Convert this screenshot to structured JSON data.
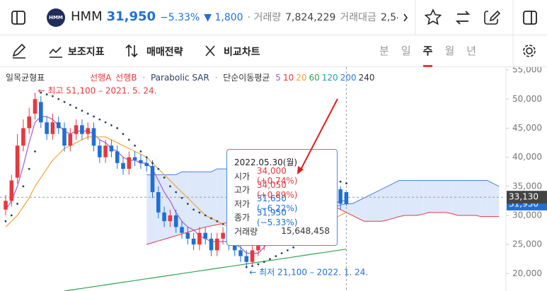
{
  "header": {
    "logo": "HMM",
    "name": "HMM",
    "price": "31,950",
    "change_pct": "−5.33%",
    "change": "▼ 1,800",
    "volume_label": "· 거래량",
    "volume": "7,824,229",
    "amount_label": "거래대금",
    "amount": "2,54"
  },
  "toolbar": {
    "indicators": "보조지표",
    "strategy": "매매전략",
    "compare": "비교차트",
    "periods": [
      "분",
      "일",
      "주",
      "월",
      "년"
    ],
    "active_period": "주"
  },
  "chart_data": {
    "type": "candlestick",
    "legend": {
      "ichimoku": "일목균형표",
      "span_a": "선행A",
      "span_b": "선행B",
      "sar": "Parabolic SAR",
      "ma": "단순이동평균"
    },
    "ylim": [
      17000,
      55500
    ],
    "yticks": [
      {
        "value": 20000,
        "label": "20,000"
      },
      {
        "value": 25000,
        "label": "25,000"
      },
      {
        "value": 30000,
        "label": "30,000"
      },
      {
        "value": 35000,
        "label": "35,000"
      },
      {
        "value": 40000,
        "label": "40,000"
      },
      {
        "value": 45000,
        "label": "45,000"
      },
      {
        "value": 50000,
        "label": "50,000"
      },
      {
        "value": 55000,
        "label": "55,000"
      }
    ],
    "up_color": "#e8383d",
    "down_color": "#1f6fd6",
    "open": [
      31000,
      32500,
      36500,
      42000,
      45000,
      47500,
      49500,
      46000,
      44000,
      46000,
      45000,
      42000,
      44000,
      45500,
      44000,
      45000,
      42000,
      40000,
      42000,
      41000,
      39000,
      38000,
      40000,
      39500,
      39000,
      38500,
      34000,
      30500,
      29000,
      30000,
      28000,
      27000,
      26000,
      25000,
      27000,
      26000,
      24000,
      26000,
      27000,
      25000,
      24000,
      23000,
      22000,
      24000,
      25000,
      27000,
      28000,
      27000,
      29000,
      30000,
      31000,
      32000,
      33000,
      31000,
      30000,
      32000,
      33000,
      34500,
      34000
    ],
    "high": [
      33500,
      37000,
      44000,
      46500,
      48500,
      51100,
      50500,
      47000,
      47500,
      47000,
      46000,
      45000,
      46500,
      46500,
      46000,
      46000,
      43000,
      43000,
      43000,
      42000,
      40000,
      41000,
      41000,
      40500,
      40000,
      39500,
      35000,
      31500,
      31000,
      31000,
      29000,
      28000,
      27000,
      28000,
      28000,
      27000,
      27000,
      28000,
      28000,
      26000,
      25000,
      24000,
      25000,
      26000,
      28000,
      29000,
      29000,
      30000,
      31000,
      32000,
      33000,
      34000,
      34000,
      32000,
      33000,
      34000,
      35000,
      35000,
      34050
    ],
    "low": [
      30000,
      31500,
      35500,
      41000,
      44000,
      46500,
      45000,
      43000,
      43000,
      44000,
      41000,
      41000,
      43000,
      43000,
      43000,
      41000,
      39000,
      39000,
      40000,
      38000,
      37000,
      37000,
      38500,
      38000,
      37500,
      33000,
      29500,
      28000,
      28000,
      27000,
      26000,
      25000,
      24000,
      24000,
      25000,
      23000,
      23000,
      25000,
      24000,
      23000,
      22000,
      21100,
      21500,
      23000,
      24000,
      26000,
      26000,
      26000,
      28000,
      29000,
      30000,
      31000,
      30000,
      29000,
      29000,
      31000,
      32000,
      31000,
      31650
    ],
    "close": [
      32500,
      36000,
      42000,
      45000,
      47000,
      50000,
      46000,
      44000,
      46000,
      45000,
      42000,
      44000,
      45500,
      44000,
      45000,
      42000,
      40000,
      42000,
      41000,
      39000,
      38000,
      40000,
      39500,
      39000,
      38500,
      34000,
      30500,
      29000,
      30000,
      28000,
      27000,
      26000,
      25000,
      27000,
      26000,
      24000,
      26000,
      27000,
      25000,
      24000,
      23000,
      22000,
      24000,
      25000,
      27000,
      28000,
      27000,
      29000,
      30000,
      31000,
      32000,
      33000,
      31000,
      30000,
      32000,
      33000,
      34000,
      32000,
      31950
    ],
    "moving_averages": [
      {
        "period": "5",
        "color": "#a55bd6",
        "values": [
          31000,
          32500,
          35000,
          38500,
          42500,
          46000,
          47000,
          47000,
          46500,
          45500,
          44500,
          44000,
          44500,
          44500,
          44500,
          44000,
          43000,
          42500,
          41500,
          41000,
          40000,
          39500,
          39500,
          39000,
          39000,
          38000,
          36000,
          34000,
          32500,
          30500,
          29000,
          28000,
          27500,
          26500,
          26000,
          25500,
          25500,
          25500,
          25500,
          25000,
          24500,
          23500,
          23500,
          23500,
          24500,
          26000,
          26500,
          27500,
          28500,
          29500,
          30500,
          31500,
          31500,
          31500,
          31500,
          31500,
          32000,
          32500,
          32500
        ]
      },
      {
        "period": "10",
        "color": "#e8383d"
      },
      {
        "period": "20",
        "color": "#f0a531",
        "values": [
          28000,
          29000,
          30000,
          31500,
          33000,
          35000,
          36500,
          38000,
          39500,
          40500,
          41500,
          42000,
          42500,
          43000,
          43500,
          43500,
          43500,
          43500,
          43000,
          42500,
          42000,
          41500,
          41000,
          40500,
          40000,
          39000,
          38000,
          37000,
          36000,
          35000,
          34000,
          33000,
          32000,
          31000,
          30000,
          29500,
          29000,
          28500,
          28000,
          27500,
          27000,
          26500,
          26000,
          25500,
          25500,
          25500,
          25500,
          25500,
          25500,
          26000,
          26500,
          27000,
          27500,
          28000,
          28500,
          29000,
          29500,
          30000,
          30500
        ]
      },
      {
        "period": "60",
        "color": "#2fa34f",
        "values": [
          null,
          null,
          null,
          null,
          null,
          null,
          null,
          null,
          null,
          null,
          17000,
          17150,
          17300,
          17450,
          17600,
          17750,
          17900,
          18050,
          18200,
          18350,
          18500,
          18650,
          18800,
          18950,
          19100,
          19250,
          19400,
          19550,
          19700,
          19850,
          20000,
          20150,
          20300,
          20450,
          20600,
          20750,
          20900,
          21050,
          21200,
          21350,
          21500,
          21650,
          21800,
          21950,
          22100,
          22250,
          22400,
          22550,
          22700,
          22850,
          23000,
          23150,
          23300,
          23450,
          23600,
          23750,
          23900,
          24050,
          24200
        ]
      },
      {
        "period": "120",
        "color": "#1aa3a3"
      },
      {
        "period": "200",
        "color": "#2a7de1"
      },
      {
        "period": "240",
        "color": "#333333"
      }
    ],
    "span_a": {
      "color": "#e8383d",
      "fill": "#fbdada",
      "values": [
        null,
        null,
        null,
        null,
        null,
        null,
        null,
        null,
        null,
        null,
        null,
        null,
        null,
        null,
        null,
        null,
        null,
        null,
        null,
        null,
        null,
        null,
        null,
        null,
        25000,
        25300,
        25600,
        25900,
        26200,
        26500,
        26800,
        27100,
        27400,
        27700,
        28000,
        28200,
        28400,
        28600,
        28800,
        29000,
        29200,
        29400,
        29600,
        29800,
        30000,
        30200,
        30400,
        30600,
        30800,
        31000,
        31200,
        31400,
        31600,
        31800,
        32000,
        32000,
        31500,
        31000,
        30500,
        30000,
        29500,
        29000,
        29000,
        29000,
        29000,
        29200,
        29500,
        29800,
        30000,
        30000,
        30000,
        30200,
        30500,
        30500,
        30500,
        30500,
        30300,
        30000,
        30000,
        30000,
        30000,
        29800,
        29800,
        29800,
        29800
      ]
    },
    "span_b": {
      "color": "#4a7fe0",
      "fill": "#dde8fb",
      "values": [
        null,
        null,
        null,
        null,
        null,
        null,
        null,
        null,
        null,
        null,
        null,
        null,
        null,
        null,
        null,
        null,
        null,
        null,
        null,
        null,
        null,
        null,
        null,
        null,
        37000,
        37000,
        37000,
        37000,
        37000,
        37000,
        37500,
        37500,
        37500,
        37500,
        37500,
        37500,
        38000,
        38000,
        38000,
        38000,
        38000,
        38000,
        38000,
        37000,
        35000,
        33000,
        32000,
        32000,
        31500,
        31500,
        31500,
        31500,
        31500,
        31500,
        31500,
        31500,
        31500,
        31800,
        32000,
        32000,
        32500,
        33000,
        33500,
        34000,
        34500,
        35000,
        35500,
        36000,
        36000,
        36000,
        36000,
        36000,
        36000,
        36000,
        36000,
        36000,
        36000,
        36000,
        36000,
        36000,
        36000,
        36000,
        36000,
        35500,
        35000
      ]
    },
    "sar": {
      "color": "#2c3e66",
      "values": [
        29000,
        30000,
        32000,
        35000,
        38000,
        41000,
        51100,
        50800,
        50500,
        50000,
        49500,
        49000,
        48500,
        48000,
        47500,
        47000,
        46500,
        46000,
        45500,
        45000,
        44000,
        43000,
        42000,
        41000,
        40000,
        39000,
        38000,
        36500,
        35000,
        34000,
        33000,
        32000,
        31000,
        30500,
        30000,
        29500,
        29000,
        28500,
        28300,
        28000,
        27800,
        21100,
        21300,
        21600,
        22000,
        22500,
        23000,
        23500,
        24000,
        24500,
        25000,
        25500,
        26000,
        26500,
        27000,
        27500,
        36000,
        35800,
        35500
      ]
    },
    "annotations": {
      "high": "← 최고 51,100 – 2021. 5. 24.",
      "low": "← 최저 21,100 – 2022. 1. 24."
    },
    "crosshair_price": {
      "value": 33130,
      "label": "33,130"
    },
    "last_price": {
      "value": 31950,
      "label": "31,950"
    },
    "tooltip": {
      "date": "2022.05.30(월)",
      "rows": [
        {
          "label": "시가",
          "value": "34,000 (+0.74%)",
          "color": "#e8383d"
        },
        {
          "label": "고가",
          "value": "34,050 (+0.89%)",
          "color": "#e8383d"
        },
        {
          "label": "저가",
          "value": "31,650 (−6.22%)",
          "color": "#1f6fd6"
        },
        {
          "label": "종가",
          "value": "31,950 (−5.33%)",
          "color": "#1f6fd6"
        }
      ],
      "volume_label": "거래량",
      "volume": "15,648,458"
    }
  }
}
